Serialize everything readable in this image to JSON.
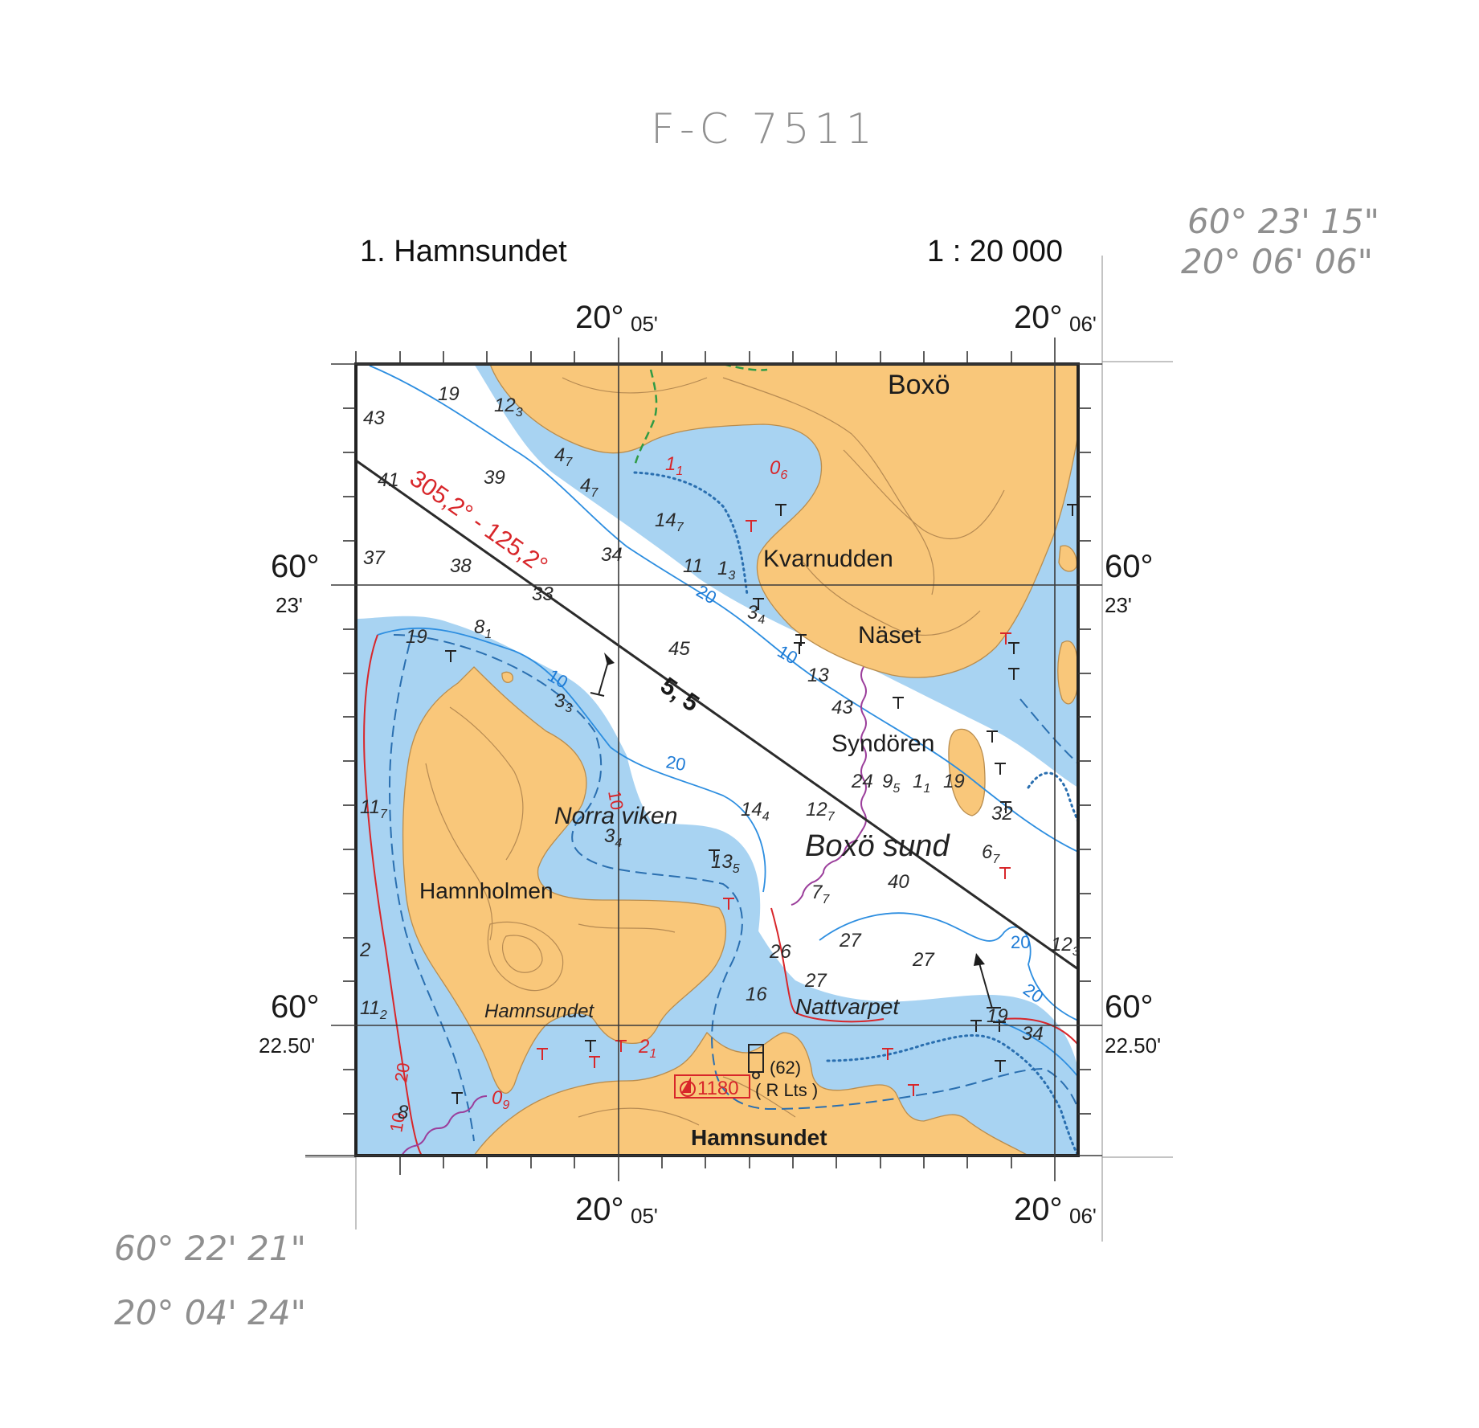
{
  "handwritten": {
    "chart_id": "F-C 7511",
    "top_right_lat": "60° 23' 15\"",
    "top_right_lon": "20° 06' 06\"",
    "bottom_left_lat": "60° 22' 21\"",
    "bottom_left_lon": "20° 04' 24\""
  },
  "header": {
    "title": "1. Hamnsundet",
    "scale": "1 : 20 000"
  },
  "coordinates": {
    "lon_05_main": "20°",
    "lon_05_min": "05'",
    "lon_06_main": "20°",
    "lon_06_min": "06'",
    "lat_23_main": "60°",
    "lat_23_min": "23'",
    "lat_2250_main": "60°",
    "lat_2250_min": "22.50'"
  },
  "places": {
    "boxo": "Boxö",
    "kvarnudden": "Kvarnudden",
    "naset": "Näset",
    "syndoren": "Syndören",
    "norra_viken": "Norra viken",
    "boxo_sund": "Boxö sund",
    "hamnholmen": "Hamnholmen",
    "hamnsundet_strait": "Hamnsundet",
    "nattvarpet": "Nattvarpet",
    "hamnsundet_village": "Hamnsundet"
  },
  "navigation": {
    "bearing": "305,2° - 125,2°",
    "leading_distance": "5, 5",
    "light_number": "1180",
    "light_height": "(62)",
    "light_type": "( R Lts )"
  },
  "contour_labels": {
    "c10_a": "10",
    "c10_b": "10",
    "c10_c": "10",
    "c20_a": "20",
    "c20_b": "20",
    "c20_c": "20",
    "c20_d": "20",
    "c10_20_left_a": "10",
    "c10_20_left_b": "20"
  },
  "soundings": [
    {
      "label": "19",
      "sub": ""
    },
    {
      "label": "12",
      "sub": "3"
    },
    {
      "label": "43",
      "sub": ""
    },
    {
      "label": "4",
      "sub": "7"
    },
    {
      "label": "4",
      "sub": "7"
    },
    {
      "label": "39",
      "sub": ""
    },
    {
      "label": "41",
      "sub": ""
    },
    {
      "label": "14",
      "sub": "7"
    },
    {
      "label": "37",
      "sub": ""
    },
    {
      "label": "38",
      "sub": ""
    },
    {
      "label": "34",
      "sub": ""
    },
    {
      "label": "11",
      "sub": ""
    },
    {
      "label": "1",
      "sub": "3"
    },
    {
      "label": "33",
      "sub": ""
    },
    {
      "label": "3",
      "sub": "4"
    },
    {
      "label": "19",
      "sub": ""
    },
    {
      "label": "8",
      "sub": "1"
    },
    {
      "label": "45",
      "sub": ""
    },
    {
      "label": "13",
      "sub": ""
    },
    {
      "label": "3",
      "sub": "3"
    },
    {
      "label": "43",
      "sub": ""
    },
    {
      "label": "11",
      "sub": "7"
    },
    {
      "label": "3",
      "sub": "4"
    },
    {
      "label": "14",
      "sub": "4"
    },
    {
      "label": "12",
      "sub": "7"
    },
    {
      "label": "32",
      "sub": ""
    },
    {
      "label": "6",
      "sub": "7"
    },
    {
      "label": "13",
      "sub": "5"
    },
    {
      "label": "40",
      "sub": ""
    },
    {
      "label": "7",
      "sub": "7"
    },
    {
      "label": "27",
      "sub": ""
    },
    {
      "label": "2",
      "sub": ""
    },
    {
      "label": "26",
      "sub": ""
    },
    {
      "label": "27",
      "sub": ""
    },
    {
      "label": "12",
      "sub": "3"
    },
    {
      "label": "27",
      "sub": ""
    },
    {
      "label": "16",
      "sub": ""
    },
    {
      "label": "11",
      "sub": "2"
    },
    {
      "label": "34",
      "sub": ""
    },
    {
      "label": "19",
      "sub": ""
    },
    {
      "label": "8",
      "sub": ""
    },
    {
      "label": "24",
      "sub": ""
    },
    {
      "label": "9",
      "sub": "5"
    },
    {
      "label": "1",
      "sub": "1"
    },
    {
      "label": "19",
      "sub": ""
    }
  ],
  "red_soundings": [
    {
      "label": "1",
      "sub": "1"
    },
    {
      "label": "0",
      "sub": "6"
    },
    {
      "label": "2",
      "sub": "1"
    },
    {
      "label": "0",
      "sub": "9"
    }
  ],
  "colors": {
    "land": "#f9c77a",
    "shallow_water": "#a8d3f2",
    "deep_water": "#ffffff",
    "contour_blue": "#1e7bd6",
    "danger_red": "#d8262a",
    "cable_purple": "#9b3e9b"
  }
}
